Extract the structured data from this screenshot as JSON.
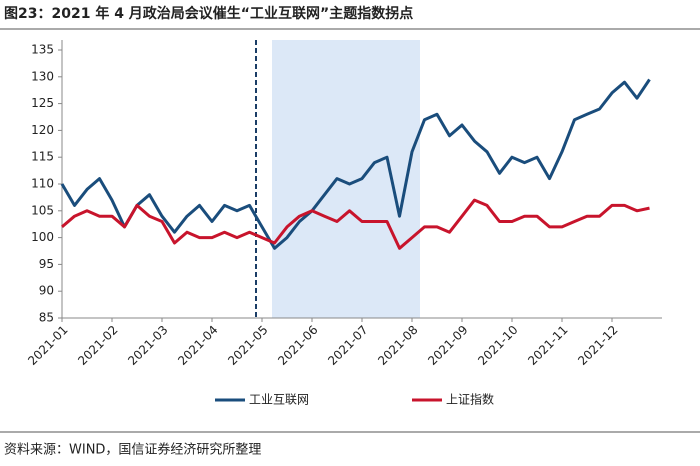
{
  "chart_data": {
    "type": "line",
    "title": "图23：2021 年 4 月政治局会议催生“工业互联网”主题指数拐点",
    "source": "资料来源：WIND，国信证券经济研究所整理",
    "categories": [
      "2021-01",
      null,
      null,
      null,
      "2021-02",
      null,
      null,
      null,
      "2021-03",
      null,
      null,
      null,
      "2021-04",
      null,
      null,
      null,
      "2021-05",
      null,
      null,
      null,
      "2021-06",
      null,
      null,
      null,
      "2021-07",
      null,
      null,
      null,
      "2021-08",
      null,
      null,
      null,
      "2021-09",
      null,
      null,
      null,
      "2021-10",
      null,
      null,
      null,
      "2021-11",
      null,
      null,
      null,
      "2021-12",
      null,
      null,
      null
    ],
    "series": [
      {
        "name": "工业互联网",
        "color": "#1a4d7c",
        "values": [
          110,
          106,
          109,
          111,
          107,
          102,
          106,
          108,
          104,
          101,
          104,
          106,
          103,
          106,
          105,
          106,
          102,
          98,
          100,
          103,
          105,
          108,
          111,
          110,
          111,
          114,
          115,
          104,
          116,
          122,
          123,
          119,
          121,
          118,
          116,
          112,
          115,
          114,
          115,
          111,
          116,
          122,
          123,
          124,
          127,
          129,
          126,
          129.5
        ]
      },
      {
        "name": "上证指数",
        "color": "#c8142c",
        "values": [
          102,
          104,
          105,
          104,
          104,
          102,
          106,
          104,
          103,
          99,
          101,
          100,
          100,
          101,
          100,
          101,
          100,
          99,
          102,
          104,
          105,
          104,
          103,
          105,
          103,
          103,
          103,
          98,
          100,
          102,
          102,
          101,
          104,
          107,
          106,
          103,
          103,
          104,
          104,
          102,
          102,
          103,
          104,
          104,
          106,
          106,
          105,
          105.5
        ]
      }
    ],
    "ylim": [
      85,
      135
    ],
    "yticks": [
      85,
      90,
      95,
      100,
      105,
      110,
      115,
      120,
      125,
      130,
      135
    ],
    "legend": "bottom"
  }
}
